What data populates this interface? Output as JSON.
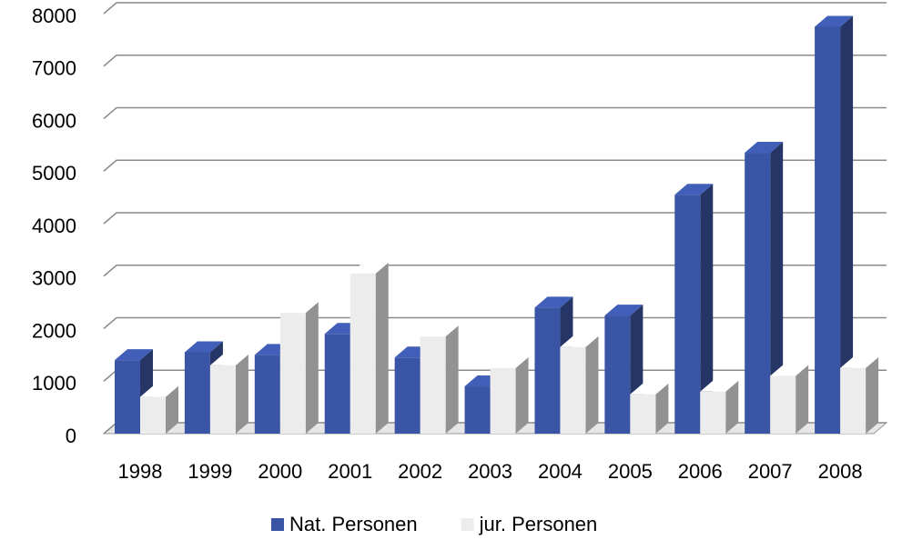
{
  "chart_data": {
    "type": "bar",
    "categories": [
      "1998",
      "1999",
      "2000",
      "2001",
      "2002",
      "2003",
      "2004",
      "2005",
      "2006",
      "2007",
      "2008"
    ],
    "series": [
      {
        "name": "Nat. Personen",
        "color": "#3a55a5",
        "values": [
          1400,
          1550,
          1500,
          1900,
          1450,
          900,
          2400,
          2250,
          4550,
          5350,
          7750
        ]
      },
      {
        "name": "jur. Personen",
        "color": "#ececec",
        "values": [
          700,
          1300,
          2300,
          3050,
          1850,
          1250,
          1650,
          750,
          800,
          1100,
          1250
        ]
      }
    ],
    "ylim": [
      0,
      8000
    ],
    "yticks": [
      0,
      1000,
      2000,
      3000,
      4000,
      5000,
      6000,
      7000,
      8000
    ],
    "grid": true,
    "legend": "bottom"
  }
}
